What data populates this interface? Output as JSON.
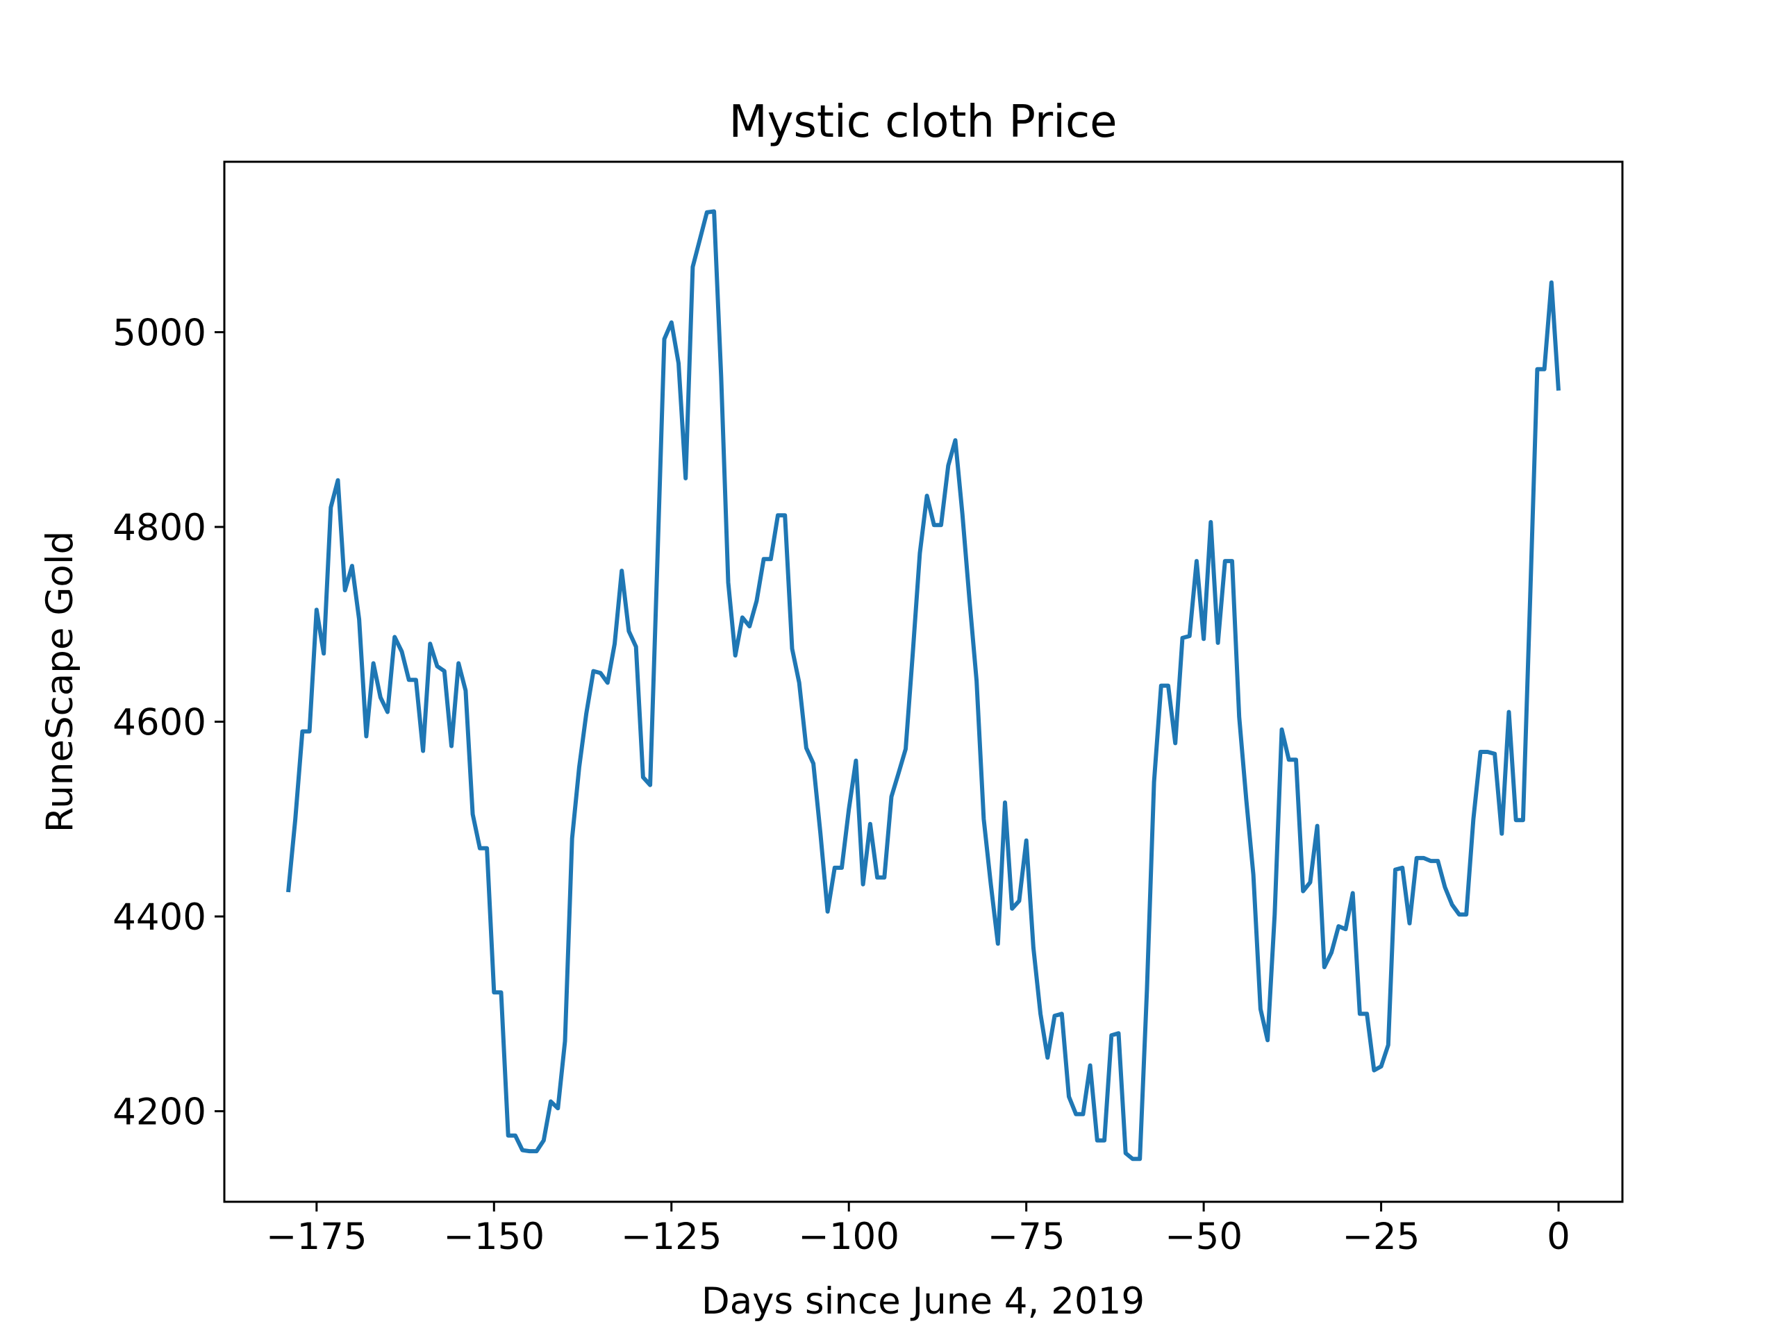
{
  "chart_data": {
    "type": "line",
    "title": "Mystic cloth Price",
    "xlabel": "Days since June 4, 2019",
    "ylabel": "RuneScape Gold",
    "xlim": [
      -188,
      9
    ],
    "ylim": [
      4107,
      5175
    ],
    "grid": false,
    "xticks": [
      -175,
      -150,
      -125,
      -100,
      -75,
      -50,
      -25,
      0
    ],
    "xtick_labels": [
      "−175",
      "−150",
      "−125",
      "−100",
      "−75",
      "−50",
      "−25",
      "0"
    ],
    "yticks": [
      4200,
      4400,
      4600,
      4800,
      5000
    ],
    "ytick_labels": [
      "4200",
      "4400",
      "4600",
      "4800",
      "5000"
    ],
    "line_color": "#1f77b4",
    "series": [
      {
        "x": [
          -179,
          -178,
          -177,
          -176,
          -175,
          -174,
          -173,
          -172,
          -171,
          -170,
          -169,
          -168,
          -167,
          -166,
          -165,
          -164,
          -163,
          -162,
          -161,
          -160,
          -159,
          -158,
          -157,
          -156,
          -155,
          -154,
          -153,
          -152,
          -151,
          -150,
          -149,
          -148,
          -147,
          -146,
          -145,
          -144,
          -143,
          -142,
          -141,
          -140,
          -139,
          -138,
          -137,
          -136,
          -135,
          -134,
          -133,
          -132,
          -131,
          -130,
          -129,
          -128,
          -127,
          -126,
          -125,
          -124,
          -123,
          -122,
          -121,
          -120,
          -119,
          -118,
          -117,
          -116,
          -115,
          -114,
          -113,
          -112,
          -111,
          -110,
          -109,
          -108,
          -107,
          -106,
          -105,
          -104,
          -103,
          -102,
          -101,
          -100,
          -99,
          -98,
          -97,
          -96,
          -95,
          -94,
          -93,
          -92,
          -91,
          -90,
          -89,
          -88,
          -87,
          -86,
          -85,
          -84,
          -83,
          -82,
          -81,
          -80,
          -79,
          -78,
          -77,
          -76,
          -75,
          -74,
          -73,
          -72,
          -71,
          -70,
          -69,
          -68,
          -67,
          -66,
          -65,
          -64,
          -63,
          -62,
          -61,
          -60,
          -59,
          -58,
          -57,
          -56,
          -55,
          -54,
          -53,
          -52,
          -51,
          -50,
          -49,
          -48,
          -47,
          -46,
          -45,
          -44,
          -43,
          -42,
          -41,
          -40,
          -39,
          -38,
          -37,
          -36,
          -35,
          -34,
          -33,
          -32,
          -31,
          -30,
          -29,
          -28,
          -27,
          -26,
          -25,
          -24,
          -23,
          -22,
          -21,
          -20,
          -19,
          -18,
          -17,
          -16,
          -15,
          -14,
          -13,
          -12,
          -11,
          -10,
          -9,
          -8,
          -7,
          -6,
          -5,
          -4,
          -3,
          -2,
          -1,
          0
        ],
        "y": [
          4425,
          4500,
          4590,
          4590,
          4715,
          4670,
          4820,
          4848,
          4735,
          4760,
          4705,
          4585,
          4660,
          4625,
          4610,
          4687,
          4672,
          4643,
          4643,
          4570,
          4680,
          4657,
          4652,
          4575,
          4660,
          4632,
          4505,
          4470,
          4470,
          4322,
          4322,
          4175,
          4175,
          4160,
          4159,
          4159,
          4170,
          4210,
          4203,
          4272,
          4480,
          4553,
          4608,
          4652,
          4650,
          4640,
          4680,
          4755,
          4693,
          4677,
          4543,
          4535,
          4760,
          4993,
          5010,
          4968,
          4850,
          5067,
          5095,
          5123,
          5124,
          4955,
          4743,
          4668,
          4707,
          4698,
          4724,
          4767,
          4767,
          4812,
          4812,
          4675,
          4640,
          4573,
          4557,
          4485,
          4405,
          4450,
          4450,
          4510,
          4560,
          4433,
          4495,
          4440,
          4440,
          4523,
          4547,
          4572,
          4670,
          4773,
          4832,
          4802,
          4802,
          4863,
          4889,
          4813,
          4725,
          4642,
          4500,
          4433,
          4372,
          4517,
          4408,
          4416,
          4478,
          4368,
          4300,
          4255,
          4298,
          4300,
          4215,
          4197,
          4197,
          4247,
          4170,
          4170,
          4278,
          4280,
          4157,
          4151,
          4151,
          4325,
          4538,
          4637,
          4637,
          4578,
          4686,
          4688,
          4765,
          4685,
          4805,
          4681,
          4765,
          4765,
          4605,
          4520,
          4443,
          4305,
          4273,
          4402,
          4592,
          4561,
          4561,
          4426,
          4435,
          4493,
          4348,
          4363,
          4390,
          4387,
          4424,
          4300,
          4300,
          4242,
          4246,
          4268,
          4448,
          4450,
          4393,
          4460,
          4460,
          4457,
          4457,
          4430,
          4412,
          4402,
          4402,
          4500,
          4569,
          4569,
          4567,
          4485,
          4610,
          4499,
          4499,
          4728,
          4962,
          4962,
          5051,
          4940
        ]
      }
    ]
  }
}
